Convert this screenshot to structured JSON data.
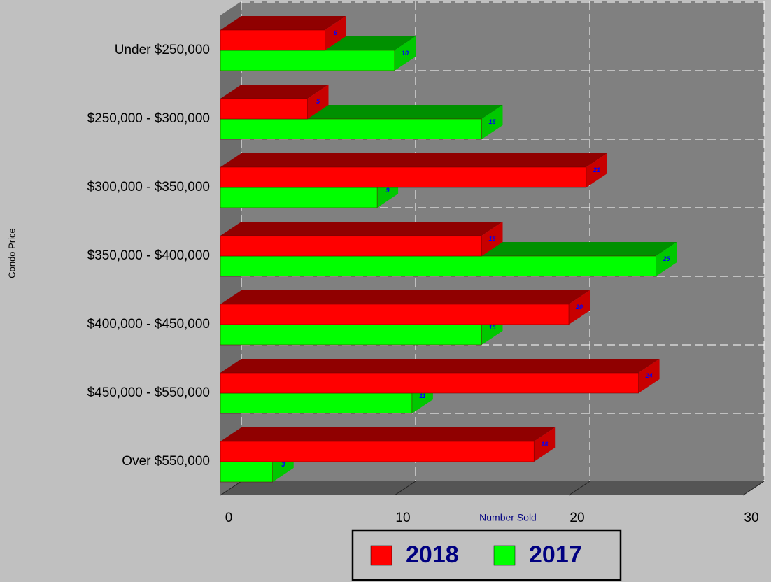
{
  "chart_data": {
    "type": "bar3d_horizontal",
    "x_label": "Number Sold",
    "y_label": "Condo Price",
    "categories": [
      "Under $250,000",
      "$250,000 - $300,000",
      "$300,000 - $350,000",
      "$350,000 - $400,000",
      "$400,000 - $450,000",
      "$450,000 - $550,000",
      "Over $550,000"
    ],
    "series": [
      {
        "name": "2018",
        "color": "#ff0000",
        "top_color": "#900000",
        "side_color": "#c80000",
        "values": [
          6,
          5,
          21,
          15,
          20,
          24,
          18
        ]
      },
      {
        "name": "2017",
        "color": "#00ff00",
        "top_color": "#009000",
        "side_color": "#00c800",
        "values": [
          10,
          15,
          9,
          25,
          15,
          11,
          3
        ]
      }
    ],
    "xlim": [
      0,
      30
    ],
    "xticks": [
      0,
      10,
      20,
      30
    ],
    "grid": true,
    "legend": "bottom"
  }
}
